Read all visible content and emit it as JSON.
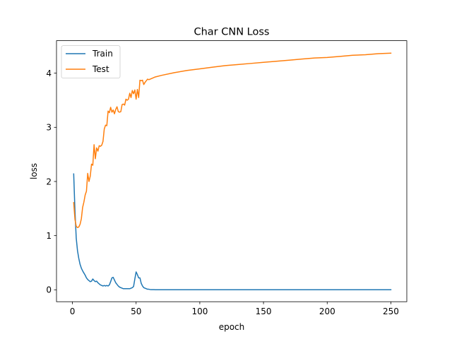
{
  "chart_data": {
    "type": "line",
    "title": "Char CNN Loss",
    "xlabel": "epoch",
    "ylabel": "loss",
    "xlim": [
      -12.5,
      262.5
    ],
    "ylim": [
      -0.22,
      4.6
    ],
    "xticks": [
      0,
      50,
      100,
      150,
      200,
      250
    ],
    "yticks": [
      0,
      1,
      2,
      3,
      4
    ],
    "grid": false,
    "legend": "top-left",
    "series": [
      {
        "name": "Train",
        "color": "#1f77b4",
        "points": [
          [
            1,
            2.14
          ],
          [
            2,
            1.45
          ],
          [
            3,
            0.95
          ],
          [
            4,
            0.72
          ],
          [
            5,
            0.58
          ],
          [
            6,
            0.47
          ],
          [
            7,
            0.4
          ],
          [
            8,
            0.35
          ],
          [
            9,
            0.31
          ],
          [
            10,
            0.27
          ],
          [
            11,
            0.22
          ],
          [
            12,
            0.19
          ],
          [
            13,
            0.17
          ],
          [
            14,
            0.15
          ],
          [
            15,
            0.16
          ],
          [
            16,
            0.2
          ],
          [
            17,
            0.17
          ],
          [
            18,
            0.15
          ],
          [
            19,
            0.16
          ],
          [
            20,
            0.13
          ],
          [
            21,
            0.11
          ],
          [
            22,
            0.09
          ],
          [
            23,
            0.08
          ],
          [
            24,
            0.07
          ],
          [
            25,
            0.08
          ],
          [
            26,
            0.07
          ],
          [
            27,
            0.08
          ],
          [
            28,
            0.07
          ],
          [
            29,
            0.09
          ],
          [
            30,
            0.15
          ],
          [
            31,
            0.22
          ],
          [
            32,
            0.23
          ],
          [
            33,
            0.18
          ],
          [
            34,
            0.13
          ],
          [
            35,
            0.1
          ],
          [
            36,
            0.07
          ],
          [
            37,
            0.05
          ],
          [
            38,
            0.04
          ],
          [
            39,
            0.03
          ],
          [
            40,
            0.02
          ],
          [
            41,
            0.02
          ],
          [
            42,
            0.02
          ],
          [
            43,
            0.02
          ],
          [
            44,
            0.02
          ],
          [
            45,
            0.02
          ],
          [
            46,
            0.03
          ],
          [
            47,
            0.04
          ],
          [
            48,
            0.06
          ],
          [
            49,
            0.2
          ],
          [
            50,
            0.33
          ],
          [
            51,
            0.28
          ],
          [
            52,
            0.22
          ],
          [
            53,
            0.22
          ],
          [
            54,
            0.12
          ],
          [
            55,
            0.07
          ],
          [
            56,
            0.04
          ],
          [
            57,
            0.03
          ],
          [
            58,
            0.02
          ],
          [
            59,
            0.01
          ],
          [
            60,
            0.01
          ],
          [
            61,
            0.005
          ],
          [
            62,
            0.003
          ],
          [
            63,
            0.002
          ],
          [
            64,
            0.002
          ],
          [
            65,
            0.001
          ],
          [
            70,
            0.001
          ],
          [
            80,
            0.001
          ],
          [
            90,
            0.001
          ],
          [
            100,
            0.001
          ],
          [
            120,
            0.001
          ],
          [
            140,
            0.001
          ],
          [
            160,
            0.001
          ],
          [
            180,
            0.001
          ],
          [
            200,
            0.001
          ],
          [
            220,
            0.001
          ],
          [
            240,
            0.001
          ],
          [
            250,
            0.001
          ]
        ]
      },
      {
        "name": "Test",
        "color": "#ff7f0e",
        "points": [
          [
            1,
            1.61
          ],
          [
            2,
            1.3
          ],
          [
            3,
            1.17
          ],
          [
            4,
            1.15
          ],
          [
            5,
            1.16
          ],
          [
            6,
            1.21
          ],
          [
            7,
            1.31
          ],
          [
            8,
            1.52
          ],
          [
            9,
            1.62
          ],
          [
            10,
            1.75
          ],
          [
            11,
            1.82
          ],
          [
            12,
            2.15
          ],
          [
            13,
            2.0
          ],
          [
            14,
            2.1
          ],
          [
            15,
            2.32
          ],
          [
            16,
            2.3
          ],
          [
            17,
            2.68
          ],
          [
            18,
            2.42
          ],
          [
            19,
            2.62
          ],
          [
            20,
            2.56
          ],
          [
            21,
            2.66
          ],
          [
            22,
            2.65
          ],
          [
            23,
            2.67
          ],
          [
            24,
            2.74
          ],
          [
            25,
            2.97
          ],
          [
            26,
            3.04
          ],
          [
            27,
            3.03
          ],
          [
            28,
            3.3
          ],
          [
            29,
            3.27
          ],
          [
            30,
            3.37
          ],
          [
            31,
            3.28
          ],
          [
            32,
            3.32
          ],
          [
            33,
            3.25
          ],
          [
            34,
            3.33
          ],
          [
            35,
            3.38
          ],
          [
            36,
            3.29
          ],
          [
            37,
            3.28
          ],
          [
            38,
            3.29
          ],
          [
            39,
            3.42
          ],
          [
            40,
            3.43
          ],
          [
            41,
            3.41
          ],
          [
            42,
            3.52
          ],
          [
            43,
            3.5
          ],
          [
            44,
            3.52
          ],
          [
            45,
            3.63
          ],
          [
            46,
            3.55
          ],
          [
            47,
            3.68
          ],
          [
            48,
            3.62
          ],
          [
            49,
            3.69
          ],
          [
            50,
            3.52
          ],
          [
            51,
            3.7
          ],
          [
            52,
            3.55
          ],
          [
            53,
            3.87
          ],
          [
            54,
            3.86
          ],
          [
            55,
            3.87
          ],
          [
            56,
            3.79
          ],
          [
            57,
            3.83
          ],
          [
            58,
            3.86
          ],
          [
            59,
            3.89
          ],
          [
            60,
            3.88
          ],
          [
            62,
            3.9
          ],
          [
            65,
            3.93
          ],
          [
            70,
            3.96
          ],
          [
            80,
            4.01
          ],
          [
            90,
            4.05
          ],
          [
            100,
            4.08
          ],
          [
            110,
            4.11
          ],
          [
            120,
            4.14
          ],
          [
            130,
            4.16
          ],
          [
            140,
            4.18
          ],
          [
            150,
            4.2
          ],
          [
            160,
            4.22
          ],
          [
            170,
            4.24
          ],
          [
            180,
            4.26
          ],
          [
            190,
            4.28
          ],
          [
            200,
            4.29
          ],
          [
            210,
            4.31
          ],
          [
            220,
            4.33
          ],
          [
            230,
            4.34
          ],
          [
            240,
            4.36
          ],
          [
            250,
            4.37
          ]
        ]
      }
    ]
  }
}
